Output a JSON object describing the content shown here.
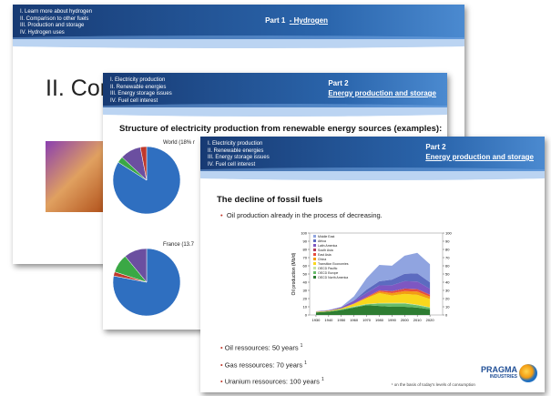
{
  "slides": [
    {
      "nav": [
        "I. Learn more about hydrogen",
        "II. Comparison to other fuels",
        "III. Production and storage",
        "IV. Hydrogen uses"
      ],
      "part": "Part 1",
      "section": "- Hydrogen",
      "title": "II. Con"
    },
    {
      "nav": [
        "I. Electricity production",
        "II. Renewable energies",
        "III. Energy storage issues",
        "IV. Fuel cell interest"
      ],
      "part": "Part 2",
      "section": "Energy production and storage",
      "title": "Structure of electricity production from renewable energy sources (examples):",
      "pies": [
        {
          "label": "World (18% r",
          "values": [
            84,
            3,
            10,
            3
          ],
          "colors": [
            "#2f6fc0",
            "#3aa845",
            "#6b4fa0",
            "#c0392b"
          ]
        },
        {
          "label": "France (13.7",
          "values": [
            78,
            2,
            9,
            11
          ],
          "colors": [
            "#2f6fc0",
            "#c0392b",
            "#3aa845",
            "#6b4fa0"
          ]
        }
      ]
    },
    {
      "nav": [
        "I. Electricity production",
        "II. Renewable energies",
        "III. Energy storage issues",
        "IV. Fuel cell interest"
      ],
      "part": "Part 2",
      "section": "Energy production and storage",
      "title": "The decline of fossil fuels",
      "bullet": "Oil production already in the process of decreasing.",
      "chart": {
        "type": "area",
        "y_label": "Oil production (Mb/d)",
        "x": [
          1930,
          1940,
          1950,
          1960,
          1970,
          1980,
          1990,
          2000,
          2010,
          2020
        ],
        "xlim": [
          1925,
          2030
        ],
        "xticks": [
          1930,
          1940,
          1950,
          1960,
          1970,
          1980,
          1990,
          2000,
          2010,
          2020
        ],
        "ylim": [
          0,
          100
        ],
        "yticks": [
          0,
          10,
          20,
          30,
          40,
          50,
          60,
          70,
          80,
          90,
          100
        ],
        "y2lim": [
          0,
          100
        ],
        "y2ticks": [
          0,
          10,
          20,
          30,
          40,
          50,
          60,
          70,
          80,
          90,
          100
        ],
        "series": [
          {
            "name": "OECD North America",
            "color": "#2e7d32",
            "values": [
              3,
              4,
              6,
              9,
              12,
              11,
              10,
              10,
              9,
              7
            ]
          },
          {
            "name": "OECD Europe",
            "color": "#66bb6a",
            "values": [
              0.5,
              0.5,
              1,
              1,
              1,
              3,
              4,
              4,
              3,
              2
            ]
          },
          {
            "name": "OECD Pacific",
            "color": "#c5e1a5",
            "values": [
              0,
              0,
              0,
              0.5,
              0.5,
              0.6,
              0.7,
              0.7,
              0.6,
              0.4
            ]
          },
          {
            "name": "Transition Economies",
            "color": "#f9d71c",
            "values": [
              0.5,
              0.6,
              1,
              3,
              7,
              12,
              9,
              11,
              12,
              10
            ]
          },
          {
            "name": "China",
            "color": "#f39c12",
            "values": [
              0,
              0,
              0,
              0.2,
              0.6,
              2,
              3,
              3.5,
              4,
              3
            ]
          },
          {
            "name": "East Asia",
            "color": "#e74c3c",
            "values": [
              0,
              0,
              0,
              0.3,
              0.8,
              1.2,
              2,
              2.5,
              2.5,
              2
            ]
          },
          {
            "name": "South Asia",
            "color": "#b03a5b",
            "values": [
              0,
              0,
              0,
              0,
              0.1,
              0.3,
              0.5,
              0.6,
              0.7,
              0.5
            ]
          },
          {
            "name": "Latin America",
            "color": "#7e57c2",
            "values": [
              0.5,
              0.8,
              1.5,
              3.5,
              5,
              6,
              7,
              9,
              9,
              7
            ]
          },
          {
            "name": "Africa",
            "color": "#5c6bc0",
            "values": [
              0,
              0,
              0,
              0.3,
              4,
              5,
              7,
              9,
              10,
              8
            ]
          },
          {
            "name": "Middle East",
            "color": "#90a4e0",
            "values": [
              0,
              0.2,
              0.5,
              5,
              14,
              20,
              17,
              22,
              25,
              22
            ]
          }
        ]
      },
      "resources": [
        {
          "text": "Oil ressources: 50 years",
          "note": "1"
        },
        {
          "text": "Gas ressources: 70 years",
          "note": "1"
        },
        {
          "text": "Uranium ressources: 100 years",
          "note": "1"
        }
      ],
      "footnote": "¹ on the basis of today's levels of consumption",
      "logo": [
        "PRAGMA",
        "INDUSTRIES"
      ]
    }
  ]
}
